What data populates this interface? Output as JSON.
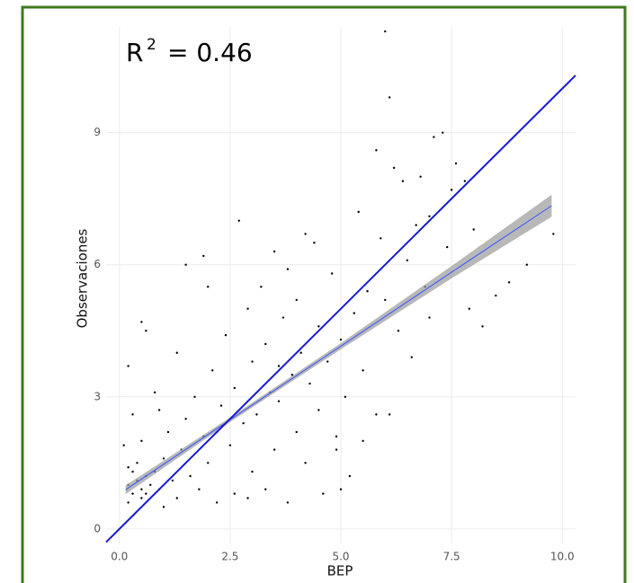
{
  "chart_data": {
    "type": "scatter",
    "annotation": {
      "base": "R",
      "sup": "2",
      "rest": "= 0.46"
    },
    "x_label": "BEP",
    "y_label": "Observaciones",
    "xlim": [
      -0.3,
      10.3
    ],
    "ylim": [
      -0.33,
      11.4
    ],
    "xticks": [
      {
        "value": 0,
        "label": "0.0"
      },
      2.5,
      {
        "value": 5,
        "label": "5.0"
      },
      7.5,
      {
        "value": 10,
        "label": "10.0"
      }
    ],
    "yticks": [
      0,
      3,
      6,
      9
    ],
    "grid": true,
    "point_color": "#000000",
    "x": [
      0.2,
      0.3,
      0.4,
      0.5,
      0.6,
      0.3,
      0.5,
      0.7,
      0.2,
      0.4,
      0.6,
      0.8,
      0.9,
      1.0,
      0.5,
      0.3,
      0.2,
      0.6,
      0.5,
      0.8,
      1.1,
      1.2,
      1.3,
      1.4,
      1.5,
      1.5,
      1.6,
      1.7,
      1.8,
      1.9,
      1.9,
      2.0,
      2.1,
      2.2,
      2.3,
      2.4,
      2.5,
      2.6,
      2.6,
      2.7,
      2.8,
      2.9,
      3.0,
      3.0,
      3.1,
      3.2,
      3.3,
      3.3,
      3.4,
      3.5,
      3.5,
      3.6,
      3.7,
      3.8,
      3.9,
      4.0,
      4.0,
      4.1,
      4.2,
      4.3,
      4.4,
      4.5,
      4.5,
      4.6,
      4.7,
      4.8,
      4.9,
      5.0,
      5.1,
      5.2,
      5.3,
      5.5,
      5.6,
      5.8,
      5.8,
      6.0,
      6.1,
      6.0,
      6.2,
      6.3,
      6.4,
      6.5,
      6.6,
      6.8,
      6.9,
      7.0,
      7.1,
      7.3,
      7.4,
      7.5,
      7.6,
      7.8,
      7.9,
      8.0,
      8.2,
      8.5,
      8.8,
      9.2,
      9.8,
      1.0,
      0.1,
      0.2,
      0.9,
      1.3,
      2.0,
      2.9,
      3.8,
      4.2,
      5.4,
      5.9,
      6.7,
      4.9,
      5.5,
      6.1,
      5.0,
      7.0,
      3.6,
      2.2
    ],
    "y": [
      1.0,
      0.8,
      1.1,
      0.9,
      1.2,
      1.3,
      0.7,
      1.0,
      0.6,
      1.5,
      0.8,
      1.3,
      0.9,
      1.6,
      2.0,
      2.6,
      3.7,
      4.5,
      4.7,
      3.1,
      2.2,
      1.1,
      0.7,
      1.8,
      2.5,
      6.0,
      1.2,
      3.0,
      0.9,
      2.1,
      6.2,
      1.5,
      3.6,
      0.6,
      2.8,
      4.4,
      1.9,
      3.2,
      0.8,
      7.0,
      2.4,
      5.0,
      1.3,
      3.8,
      2.6,
      5.5,
      0.9,
      4.2,
      3.1,
      1.8,
      6.3,
      2.9,
      4.8,
      0.6,
      3.5,
      2.2,
      5.2,
      4.0,
      1.5,
      3.3,
      6.5,
      2.7,
      4.6,
      0.8,
      3.8,
      5.8,
      2.1,
      4.3,
      3.0,
      1.2,
      4.9,
      3.6,
      5.4,
      2.6,
      8.6,
      11.3,
      9.8,
      5.2,
      8.2,
      4.5,
      7.9,
      6.1,
      3.9,
      8.0,
      5.5,
      7.1,
      8.9,
      9.0,
      6.4,
      7.7,
      8.3,
      7.9,
      5.0,
      6.8,
      4.6,
      5.3,
      5.6,
      6.0,
      6.7,
      0.5,
      1.9,
      1.4,
      2.7,
      4.0,
      5.5,
      0.7,
      5.9,
      6.7,
      7.2,
      6.6,
      6.9,
      1.8,
      2.0,
      2.6,
      0.9,
      4.8,
      3.7,
      2.2
    ],
    "reference_line": {
      "x": [
        -0.3,
        10.3
      ],
      "y": [
        -0.3,
        10.3
      ],
      "color": "#1a1acc"
    },
    "fit": {
      "x": [
        0.14,
        2.5,
        5,
        7.5,
        9.76
      ],
      "y": [
        0.89,
        2.48,
        4.15,
        5.83,
        7.34
      ],
      "ci_lower": [
        0.79,
        2.43,
        4.08,
        5.69,
        7.09
      ],
      "ci_upper": [
        0.99,
        2.53,
        4.22,
        5.97,
        7.59
      ],
      "color": "#3355ff",
      "band_color": "#9a9a9a"
    },
    "frame_color": "#3f7a1e"
  }
}
